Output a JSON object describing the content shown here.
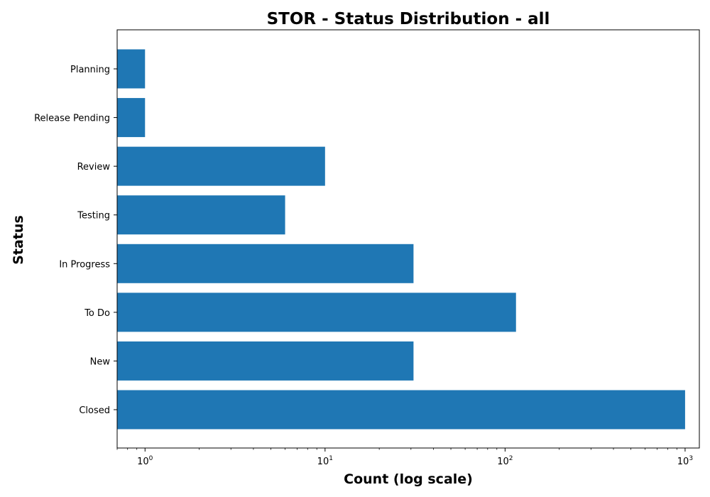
{
  "chart_data": {
    "type": "bar",
    "orientation": "horizontal",
    "title": "STOR - Status Distribution - all",
    "xlabel": "Count (log scale)",
    "ylabel": "Status",
    "xscale": "log",
    "xlim": [
      0.7,
      1200
    ],
    "x_ticks": [
      {
        "base": "10",
        "exp": "0",
        "value": 1
      },
      {
        "base": "10",
        "exp": "1",
        "value": 10
      },
      {
        "base": "10",
        "exp": "2",
        "value": 100
      },
      {
        "base": "10",
        "exp": "3",
        "value": 1000
      }
    ],
    "categories": [
      "Closed",
      "New",
      "To Do",
      "In Progress",
      "Testing",
      "Review",
      "Release Pending",
      "Planning"
    ],
    "values": [
      1000,
      31,
      115,
      31,
      6,
      10,
      1,
      1
    ],
    "bar_color": "#1f77b4",
    "grid": false,
    "legend": "none"
  }
}
